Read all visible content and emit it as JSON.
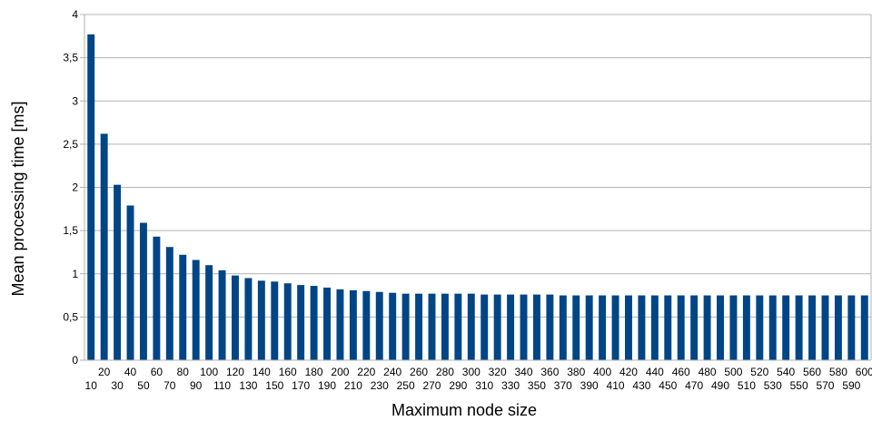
{
  "chart_data": {
    "type": "bar",
    "xlabel": "Maximum node size",
    "ylabel": "Mean processing time [ms]",
    "ylim": [
      0,
      4
    ],
    "yticks": [
      "0",
      "0,5",
      "1",
      "1,5",
      "2",
      "2,5",
      "3",
      "3,5",
      "4"
    ],
    "grid": true,
    "bar_color": "#004586",
    "categories": [
      "10",
      "20",
      "30",
      "40",
      "50",
      "60",
      "70",
      "80",
      "90",
      "100",
      "110",
      "120",
      "130",
      "140",
      "150",
      "160",
      "170",
      "180",
      "190",
      "200",
      "210",
      "220",
      "230",
      "240",
      "250",
      "260",
      "270",
      "280",
      "290",
      "300",
      "310",
      "320",
      "330",
      "340",
      "350",
      "360",
      "370",
      "380",
      "390",
      "400",
      "410",
      "420",
      "430",
      "440",
      "450",
      "460",
      "470",
      "480",
      "490",
      "500",
      "510",
      "520",
      "530",
      "540",
      "550",
      "560",
      "570",
      "580",
      "590",
      "600"
    ],
    "values": [
      3.77,
      2.62,
      2.03,
      1.79,
      1.59,
      1.43,
      1.31,
      1.22,
      1.16,
      1.1,
      1.04,
      0.98,
      0.95,
      0.92,
      0.91,
      0.89,
      0.87,
      0.86,
      0.84,
      0.82,
      0.81,
      0.8,
      0.79,
      0.78,
      0.77,
      0.77,
      0.77,
      0.77,
      0.77,
      0.77,
      0.76,
      0.76,
      0.76,
      0.76,
      0.76,
      0.76,
      0.75,
      0.75,
      0.75,
      0.75,
      0.75,
      0.75,
      0.75,
      0.75,
      0.75,
      0.75,
      0.75,
      0.75,
      0.75,
      0.75,
      0.75,
      0.75,
      0.75,
      0.75,
      0.75,
      0.75,
      0.75,
      0.75,
      0.75,
      0.75
    ]
  }
}
